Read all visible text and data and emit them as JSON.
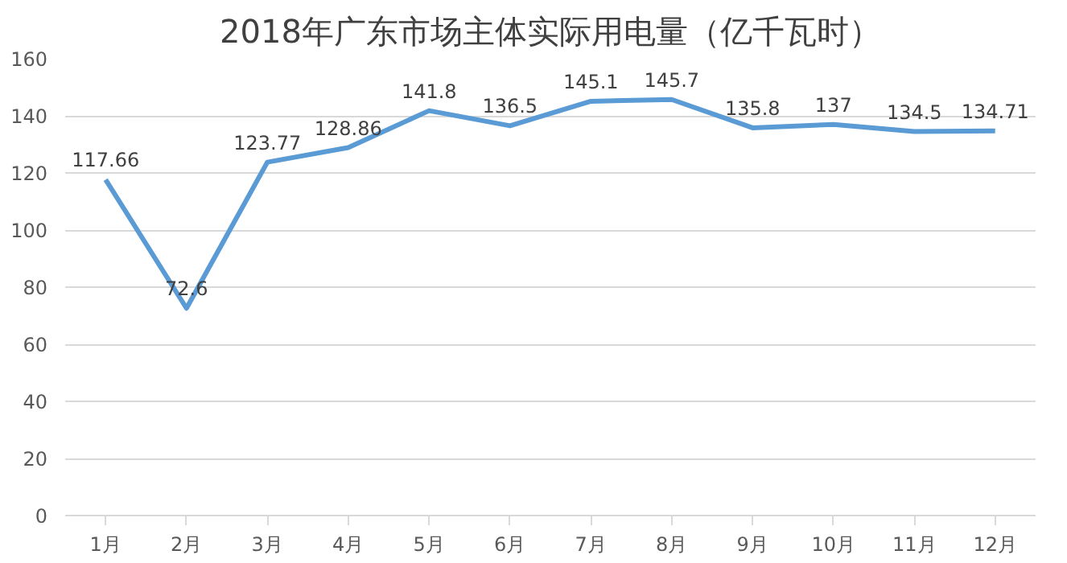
{
  "chart_data": {
    "type": "line",
    "title": "2018年广东市场主体实际用电量（亿千瓦时）",
    "categories": [
      "1月",
      "2月",
      "3月",
      "4月",
      "5月",
      "6月",
      "7月",
      "8月",
      "9月",
      "10月",
      "11月",
      "12月"
    ],
    "series": [
      {
        "color": "#5b9bd5",
        "values": [
          117.66,
          72.6,
          123.77,
          128.86,
          141.8,
          136.5,
          145.1,
          145.7,
          135.8,
          137,
          134.5,
          134.71
        ]
      }
    ],
    "ylim": [
      0,
      160
    ],
    "yticks": [
      0,
      20,
      40,
      60,
      80,
      100,
      120,
      140,
      160
    ],
    "grid": "y",
    "data_labels": true,
    "line_style": "solid"
  }
}
